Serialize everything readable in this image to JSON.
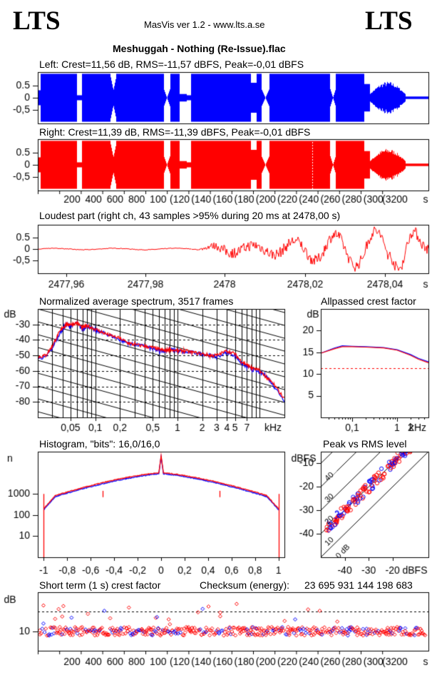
{
  "header": {
    "logo_left": "LTS",
    "logo_right": "LTS",
    "app_version": "MasVis ver 1.2 - www.lts.a.se",
    "file_title": "Meshuggah - Nothing (Re-Issue).flac"
  },
  "colors": {
    "left": "#0000ff",
    "right": "#ff0000",
    "black": "#000000",
    "white": "#ffffff"
  },
  "chart_data": [
    {
      "id": "left_waveform",
      "type": "area",
      "title": "Left: Crest=11,56 dB, RMS=-11,57 dBFS, Peak=-0,01 dBFS",
      "ylim": [
        -1,
        1
      ],
      "y_ticks": [
        "0.5",
        "0",
        "-0,5"
      ],
      "duration_s": 330
    },
    {
      "id": "right_waveform",
      "type": "area",
      "title": "Right: Crest=11,39 dB, RMS=-11,39 dBFS, Peak=-0,01 dBFS",
      "ylim": [
        -1,
        1
      ],
      "y_ticks": [
        "0.5",
        "0",
        "-0,5"
      ],
      "x_tick_labels": [
        "200",
        "400",
        "600",
        "800",
        "100",
        "(120",
        "(140",
        "(160",
        "(180",
        "(200",
        "(220",
        "(240",
        "(260",
        "(280",
        "(300",
        "(3200",
        "s"
      ],
      "peak_marker_s": 2478
    },
    {
      "id": "loudest_part",
      "type": "line",
      "title": "Loudest part (right ch, 43 samples >95% during 20 ms at 2478,00 s)",
      "ylim": [
        -1,
        1
      ],
      "y_ticks": [
        "0.5",
        "0",
        "-0,5"
      ],
      "xlim": [
        2477.945,
        2478.055
      ],
      "x_ticks": [
        2477.96,
        2477.98,
        2478.0,
        2478.02,
        2478.04
      ],
      "x_tick_labels": [
        "2477,96",
        "2477,98",
        "2478",
        "2478,02",
        "2478,04",
        "s"
      ]
    },
    {
      "id": "avg_spectrum",
      "type": "line",
      "title": "Normalized average spectrum, 3517 frames",
      "ylabel": "dB",
      "xlabel": "kHz",
      "x_log": true,
      "xlim": [
        0.02,
        20
      ],
      "ylim": [
        -90,
        -20
      ],
      "y_ticks": [
        -30,
        -40,
        -50,
        -60,
        -70,
        -80
      ],
      "x_tick_labels": [
        "0,05",
        "0,1",
        "0,2",
        "0,5",
        "1",
        "2",
        "3",
        "4",
        "5",
        "7",
        "kHz"
      ],
      "series": [
        {
          "name": "Left",
          "x": [
            0.02,
            0.025,
            0.03,
            0.035,
            0.04,
            0.045,
            0.05,
            0.06,
            0.07,
            0.08,
            0.1,
            0.12,
            0.15,
            0.2,
            0.25,
            0.3,
            0.4,
            0.5,
            0.6,
            0.7,
            0.8,
            1,
            1.2,
            1.5,
            2,
            2.5,
            3,
            4,
            5,
            6,
            7,
            8,
            10,
            12,
            15,
            20
          ],
          "y": [
            -52,
            -51,
            -45,
            -38,
            -33,
            -30,
            -31,
            -29,
            -33,
            -31,
            -34,
            -35,
            -37,
            -40,
            -42,
            -43,
            -44,
            -46,
            -47,
            -47,
            -46,
            -47,
            -48,
            -48,
            -49,
            -50,
            -51,
            -48,
            -50,
            -55,
            -57,
            -59,
            -61,
            -63,
            -70,
            -79
          ]
        },
        {
          "name": "Right",
          "x": [
            0.02,
            0.025,
            0.03,
            0.035,
            0.04,
            0.045,
            0.05,
            0.06,
            0.07,
            0.08,
            0.1,
            0.12,
            0.15,
            0.2,
            0.25,
            0.3,
            0.4,
            0.5,
            0.6,
            0.7,
            0.8,
            1,
            1.2,
            1.5,
            2,
            2.5,
            3,
            4,
            5,
            6,
            7,
            8,
            10,
            12,
            15,
            20
          ],
          "y": [
            -51,
            -50,
            -44,
            -37,
            -32,
            -30,
            -30,
            -29,
            -32,
            -31,
            -33,
            -35,
            -37,
            -39,
            -42,
            -43,
            -44,
            -45,
            -46,
            -47,
            -46,
            -47,
            -47,
            -48,
            -49,
            -50,
            -50,
            -47,
            -49,
            -54,
            -56,
            -58,
            -60,
            -64,
            -69,
            -78
          ]
        }
      ]
    },
    {
      "id": "allpassed_crest",
      "type": "line",
      "title": "Allpassed crest factor",
      "ylabel": "dB",
      "xlabel": "kHz",
      "x_log": true,
      "xlim": [
        0.02,
        5
      ],
      "ylim": [
        0,
        25
      ],
      "y_ticks": [
        20,
        15,
        10,
        5
      ],
      "x_tick_labels": [
        "0,1",
        "1",
        "2",
        "kHz"
      ],
      "reference_line": 11.4,
      "series": [
        {
          "name": "Left",
          "x": [
            0.02,
            0.04,
            0.06,
            0.1,
            0.2,
            0.5,
            1,
            2,
            3,
            5
          ],
          "y": [
            14.8,
            16.0,
            16.5,
            16.4,
            16.3,
            16.1,
            15.6,
            14.5,
            13.6,
            12.8
          ]
        },
        {
          "name": "Right",
          "x": [
            0.02,
            0.04,
            0.06,
            0.1,
            0.2,
            0.5,
            1,
            2,
            3,
            5
          ],
          "y": [
            14.8,
            15.8,
            16.3,
            16.3,
            16.2,
            16.0,
            15.5,
            14.3,
            13.4,
            12.6
          ]
        }
      ]
    },
    {
      "id": "histogram",
      "type": "line",
      "title": "Histogram, \"bits\": 16,0/16,0",
      "ylabel": "n",
      "y_log": true,
      "xlim": [
        -1.05,
        1.05
      ],
      "ylim": [
        1,
        100000
      ],
      "y_tick_labels": [
        "1000",
        "100",
        "10"
      ],
      "x_ticks": [
        -1,
        -0.8,
        -0.6,
        -0.4,
        -0.2,
        0,
        0.2,
        0.4,
        0.6,
        0.8,
        1
      ],
      "x_tick_labels": [
        "-1",
        "-0,8",
        "-0,6",
        "-0,4",
        "-0,2",
        "0",
        "0,2",
        "0,4",
        "0,6",
        "0,8",
        "1"
      ]
    },
    {
      "id": "peak_vs_rms",
      "type": "scatter",
      "title": "Peak vs RMS level",
      "ylabel": "dBFS",
      "xlabel": "dBFS",
      "xlim": [
        -50,
        -5
      ],
      "ylim": [
        -50,
        -5
      ],
      "y_ticks": [
        -10,
        -20,
        -30,
        -40
      ],
      "x_ticks": [
        -40,
        -30,
        -20
      ],
      "diagonal_labels": [
        "40",
        "30",
        "20",
        "10",
        "0 dB"
      ]
    },
    {
      "id": "short_term_crest",
      "type": "scatter",
      "title": "Short term (1 s) crest factor",
      "checksum_label": "Checksum (energy):",
      "checksum_value": "23 695 931 144 198 683",
      "ylabel": "dB",
      "y_ticks": [
        10
      ],
      "ylim": [
        5,
        20
      ],
      "reference_line": 15,
      "x_tick_labels": [
        "200",
        "400",
        "600",
        "800",
        "100",
        "(120",
        "(140",
        "(160",
        "(180",
        "(200",
        "(220",
        "(240",
        "(260",
        "(280",
        "(300",
        "(3200",
        "s"
      ]
    }
  ]
}
